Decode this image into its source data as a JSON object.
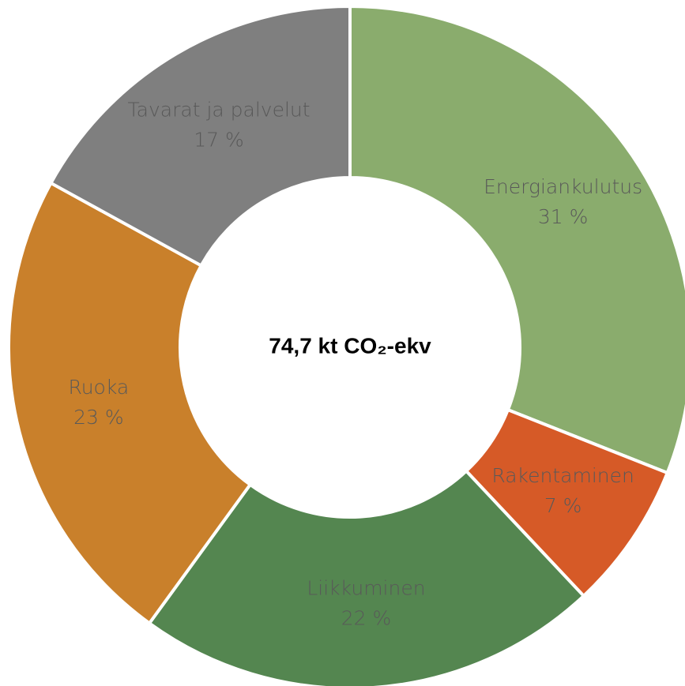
{
  "chart_data": {
    "type": "donut",
    "center_label": "74,7 kt CO₂-ekv",
    "categories": [
      "Energiankulutus",
      "Rakentaminen",
      "Liikkuminen",
      "Ruoka",
      "Tavarat ja palvelut"
    ],
    "values": [
      31,
      7,
      22,
      23,
      17
    ],
    "value_labels": [
      "31 %",
      "7 %",
      "22 %",
      "23 %",
      "17 %"
    ],
    "colors": [
      "#8aac6d",
      "#d65a27",
      "#548650",
      "#c9802b",
      "#7f7f7f"
    ]
  }
}
